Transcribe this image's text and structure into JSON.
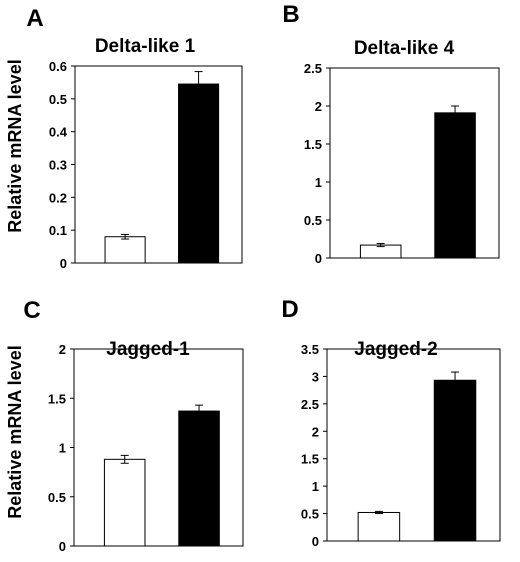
{
  "ylabel": "Relative mRNA level",
  "chart_data": [
    {
      "type": "bar",
      "panel": "A",
      "title": "Delta-like 1",
      "ylabel": "Relative mRNA level",
      "ylim": [
        0,
        0.6
      ],
      "ticks": [
        "0",
        "0.1",
        "0.2",
        "0.3",
        "0.4",
        "0.5",
        "0.6"
      ],
      "values": [
        0.08,
        0.545
      ],
      "errors": [
        0.007,
        0.038
      ],
      "colors": [
        "#ffffff",
        "#000000"
      ]
    },
    {
      "type": "bar",
      "panel": "B",
      "title": "Delta-like 4",
      "ylabel": "",
      "ylim": [
        0,
        2.5
      ],
      "ticks": [
        "0",
        "0.5",
        "1",
        "1.5",
        "2",
        "2.5"
      ],
      "values": [
        0.17,
        1.91
      ],
      "errors": [
        0.02,
        0.09
      ],
      "colors": [
        "#ffffff",
        "#000000"
      ]
    },
    {
      "type": "bar",
      "panel": "C",
      "title": "Jagged-1",
      "ylabel": "Relative mRNA level",
      "ylim": [
        0,
        2
      ],
      "ticks": [
        "0",
        "0.5",
        "1",
        "1.5",
        "2"
      ],
      "values": [
        0.88,
        1.37
      ],
      "errors": [
        0.04,
        0.06
      ],
      "colors": [
        "#ffffff",
        "#000000"
      ]
    },
    {
      "type": "bar",
      "panel": "D",
      "title": "Jagged-2",
      "ylabel": "",
      "ylim": [
        0,
        3.5
      ],
      "ticks": [
        "0",
        "0.5",
        "1",
        "1.5",
        "2",
        "2.5",
        "3",
        "3.5"
      ],
      "values": [
        0.52,
        2.93
      ],
      "errors": [
        0.02,
        0.15
      ],
      "colors": [
        "#ffffff",
        "#000000"
      ]
    }
  ]
}
